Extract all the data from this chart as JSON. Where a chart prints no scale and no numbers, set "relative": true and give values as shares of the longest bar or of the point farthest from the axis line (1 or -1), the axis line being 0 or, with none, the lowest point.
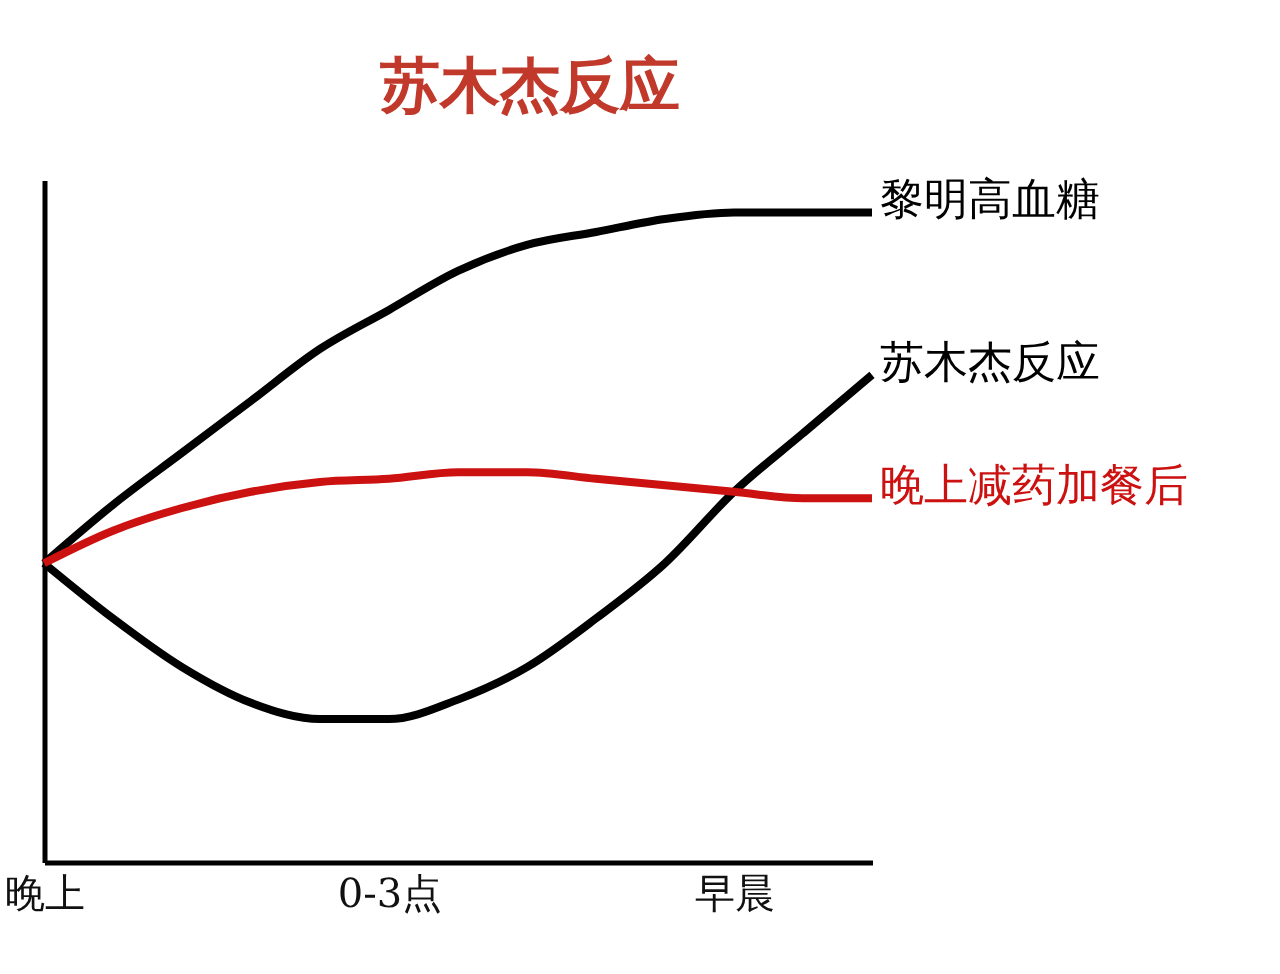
{
  "chart_data": {
    "type": "line",
    "title": "苏木杰反应",
    "relative": true,
    "categories": [
      "晚上",
      null,
      null,
      null,
      null,
      "0-3点",
      null,
      null,
      null,
      null,
      "早晨",
      null,
      null
    ],
    "series": [
      {
        "name": "黎明高血糖",
        "color": "#000000",
        "values": [
          0.46,
          0.55,
          0.63,
          0.71,
          0.79,
          0.85,
          0.91,
          0.95,
          0.97,
          0.99,
          1.0,
          1.0,
          1.0
        ]
      },
      {
        "name": "苏木杰反应",
        "color": "#000000",
        "values": [
          0.46,
          0.375,
          0.3,
          0.245,
          0.22,
          0.22,
          0.25,
          0.3,
          0.375,
          0.46,
          0.57,
          0.66,
          0.75
        ]
      },
      {
        "name": "晚上减药加餐后",
        "color": "#cc1111",
        "values": [
          0.46,
          0.51,
          0.545,
          0.57,
          0.585,
          0.59,
          0.6,
          0.6,
          0.59,
          0.58,
          0.57,
          0.56,
          0.56
        ]
      }
    ]
  }
}
